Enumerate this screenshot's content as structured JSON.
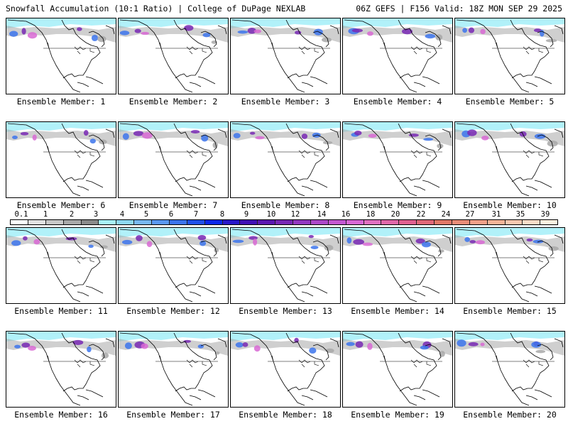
{
  "header": {
    "title": "Snowfall Accumulation (10:1 Ratio) | College of DuPage NEXLAB",
    "run_info": "06Z GEFS | F156 Valid: 18Z MON SEP 29 2025"
  },
  "members": [
    {
      "label": "Ensemble Member: 1"
    },
    {
      "label": "Ensemble Member: 2"
    },
    {
      "label": "Ensemble Member: 3"
    },
    {
      "label": "Ensemble Member: 4"
    },
    {
      "label": "Ensemble Member: 5"
    },
    {
      "label": "Ensemble Member: 6"
    },
    {
      "label": "Ensemble Member: 7"
    },
    {
      "label": "Ensemble Member: 8"
    },
    {
      "label": "Ensemble Member: 9"
    },
    {
      "label": "Ensemble Member: 10"
    },
    {
      "label": "Ensemble Member: 11"
    },
    {
      "label": "Ensemble Member: 12"
    },
    {
      "label": "Ensemble Member: 13"
    },
    {
      "label": "Ensemble Member: 14"
    },
    {
      "label": "Ensemble Member: 15"
    },
    {
      "label": "Ensemble Member: 16"
    },
    {
      "label": "Ensemble Member: 17"
    },
    {
      "label": "Ensemble Member: 18"
    },
    {
      "label": "Ensemble Member: 19"
    },
    {
      "label": "Ensemble Member: 20"
    }
  ],
  "scale": {
    "labels": [
      "0.1",
      "1",
      "2",
      "3",
      "4",
      "5",
      "6",
      "7",
      "8",
      "9",
      "10",
      "12",
      "14",
      "16",
      "18",
      "20",
      "22",
      "24",
      "27",
      "31",
      "35",
      "39"
    ],
    "colors": [
      "#ffffff",
      "#e2e2e2",
      "#c8c8c8",
      "#a8a8a8",
      "#8a8a8a",
      "#a8f0f8",
      "#8ed8f0",
      "#78b8f0",
      "#5a98f0",
      "#3c74ec",
      "#2050e8",
      "#0a28e8",
      "#2818c8",
      "#4010b4",
      "#5c18b0",
      "#7828b4",
      "#9238c0",
      "#ac48c8",
      "#c458d0",
      "#d868d4",
      "#e070c0",
      "#e068a8",
      "#e06090",
      "#e06878",
      "#e07868",
      "#e88c78",
      "#f0a088",
      "#f4b498",
      "#f8c8b0",
      "#fcdcc8",
      "#fff0e0"
    ]
  },
  "colors": {
    "outline": "#000000",
    "ice": "#a8f0f8",
    "gray_snow": "#a8a8a8",
    "blue_snow": "#3c74ec",
    "purple_snow": "#7828b4",
    "pink_snow": "#d868d4"
  }
}
